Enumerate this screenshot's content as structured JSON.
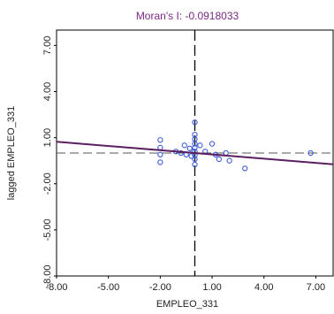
{
  "chart_data": {
    "type": "scatter",
    "title": "Moran's I: -0.0918033",
    "xlabel": "EMPLEO_331",
    "ylabel": "lagged EMPLEO_331",
    "xlim": [
      -8,
      8
    ],
    "ylim": [
      -8,
      8
    ],
    "x_ticks": [
      -8,
      -5,
      -2,
      1,
      4,
      7
    ],
    "x_tick_labels": [
      "-8.00",
      "-5.00",
      "-2.00",
      "1.00",
      "4.00",
      "7.00"
    ],
    "y_ticks": [
      7,
      4,
      1,
      -2,
      -5,
      -8
    ],
    "y_tick_labels": [
      "7.00",
      "4.00",
      "1.00",
      "-2.00",
      "-5.00",
      "-8.00"
    ],
    "grid": false,
    "points": [
      {
        "x": -2.0,
        "y": 0.85
      },
      {
        "x": -2.0,
        "y": 0.35
      },
      {
        "x": -2.0,
        "y": -0.1
      },
      {
        "x": -2.0,
        "y": -0.6
      },
      {
        "x": -1.1,
        "y": 0.1
      },
      {
        "x": -0.8,
        "y": 0.0
      },
      {
        "x": -0.6,
        "y": 0.5
      },
      {
        "x": -0.5,
        "y": -0.1
      },
      {
        "x": -0.3,
        "y": 0.3
      },
      {
        "x": -0.2,
        "y": -0.2
      },
      {
        "x": -0.1,
        "y": 0.1
      },
      {
        "x": 0.0,
        "y": 0.9
      },
      {
        "x": 0.0,
        "y": 0.6
      },
      {
        "x": 0.0,
        "y": 0.35
      },
      {
        "x": 0.0,
        "y": 0.1
      },
      {
        "x": 0.0,
        "y": -0.15
      },
      {
        "x": 0.0,
        "y": -0.4
      },
      {
        "x": 0.0,
        "y": -0.75
      },
      {
        "x": 0.0,
        "y": 1.2
      },
      {
        "x": 0.0,
        "y": 2.0
      },
      {
        "x": 0.3,
        "y": 0.5
      },
      {
        "x": 0.6,
        "y": 0.1
      },
      {
        "x": 1.0,
        "y": 0.6
      },
      {
        "x": 1.2,
        "y": -0.1
      },
      {
        "x": 1.4,
        "y": -0.4
      },
      {
        "x": 1.8,
        "y": 0.0
      },
      {
        "x": 2.0,
        "y": -0.5
      },
      {
        "x": 2.9,
        "y": -1.0
      },
      {
        "x": 6.7,
        "y": 0.0
      }
    ],
    "regression_slope": -0.0918033,
    "reference_lines": {
      "x": 0.0,
      "y": 0.0
    },
    "colors": {
      "points": "#3b5bd6",
      "regression": "#5a1f5f",
      "reference": "#555555",
      "title": "#7a2a86",
      "axes": "#000000"
    }
  }
}
